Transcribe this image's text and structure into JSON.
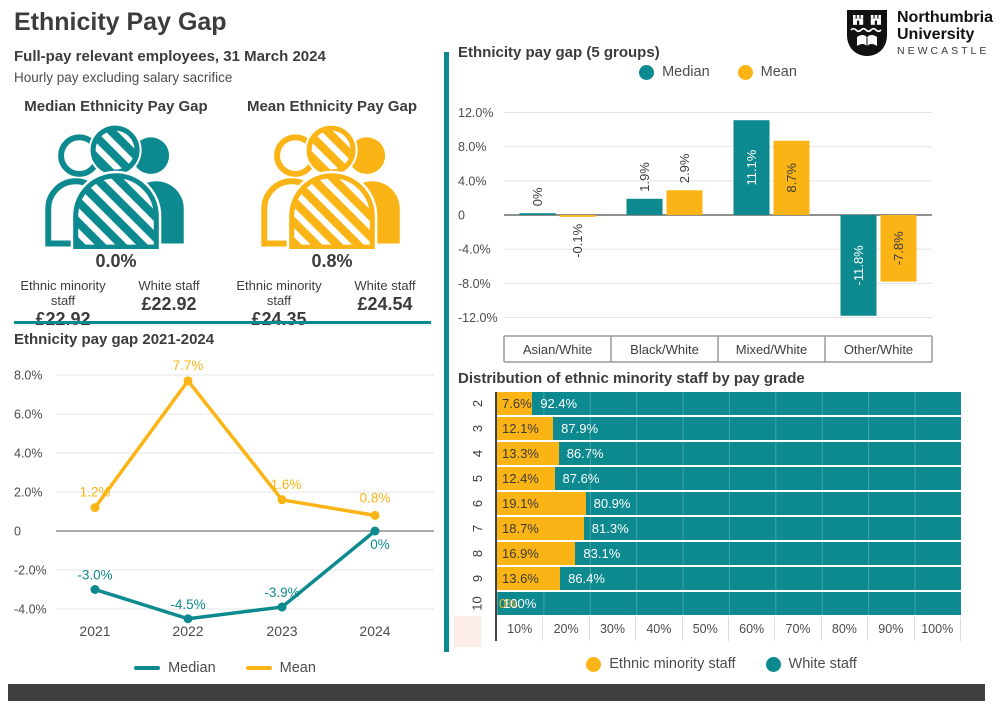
{
  "header": {
    "title": "Ethnicity Pay Gap",
    "subtitle": "Full-pay relevant employees, 31 March 2024",
    "note": "Hourly pay excluding salary sacrifice"
  },
  "logo": {
    "line1": "Northumbria",
    "line2": "University",
    "line3": "NEWCASTLE"
  },
  "colors": {
    "teal": "#0D8A8F",
    "yellow": "#FBB415",
    "dark_text": "#3C3C3B",
    "axis_text": "#4C4C4C",
    "gridline": "#E4E4E4",
    "zero_line": "#8F8F8F",
    "footer": "#3F3F3F"
  },
  "pay_gap": {
    "cards": [
      {
        "title": "Median Ethnicity Pay Gap",
        "value": "0.0%",
        "color": "teal",
        "icon": "people-group-icon",
        "groups": [
          {
            "label": "Ethnic minority staff",
            "value": "£22.92"
          },
          {
            "label": "White staff",
            "value": "£22.92"
          }
        ]
      },
      {
        "title": "Mean Ethnicity Pay Gap",
        "value": "0.8%",
        "color": "yellow",
        "icon": "people-group-icon",
        "groups": [
          {
            "label": "Ethnic minority staff",
            "value": "£24.35"
          },
          {
            "label": "White staff",
            "value": "£24.54"
          }
        ]
      }
    ]
  },
  "chart_data": [
    {
      "id": "trend",
      "type": "line",
      "title": "Ethnicity pay gap 2021-2024",
      "x": [
        "2021",
        "2022",
        "2023",
        "2024"
      ],
      "series": [
        {
          "name": "Median",
          "color": "teal",
          "values": [
            -3.0,
            -4.5,
            -3.9,
            0
          ],
          "labels": [
            "-3.0%",
            "-4.5%",
            "-3.9%",
            "0%"
          ]
        },
        {
          "name": "Mean",
          "color": "yellow",
          "values": [
            1.2,
            7.7,
            1.6,
            0.8
          ],
          "labels": [
            "1.2%",
            "7.7%",
            "1.6%",
            "0.8%"
          ]
        }
      ],
      "yticks": [
        8,
        6,
        4,
        2,
        0,
        -2,
        -4
      ],
      "ytick_labels": [
        "8.0%",
        "6.0%",
        "4.0%",
        "2.0%",
        "0",
        "-2.0%",
        "-4.0%"
      ],
      "ylim": [
        -5.5,
        8.5
      ],
      "legend_position": "bottom",
      "grid": true
    },
    {
      "id": "groups",
      "type": "bar",
      "title": "Ethnicity pay gap (5 groups)",
      "categories": [
        "Asian/White",
        "Black/White",
        "Mixed/White",
        "Other/White"
      ],
      "series": [
        {
          "name": "Median",
          "color": "teal",
          "values": [
            0,
            1.9,
            11.1,
            -11.8
          ],
          "labels": [
            "0%",
            "1.9%",
            "11.1%",
            "-11.8%"
          ]
        },
        {
          "name": "Mean",
          "color": "yellow",
          "values": [
            -0.1,
            2.9,
            8.7,
            -7.8
          ],
          "labels": [
            "-0.1%",
            "2.9%",
            "8.7%",
            "-7.8%"
          ]
        }
      ],
      "yticks": [
        12,
        8,
        4,
        0,
        -4,
        -8,
        -12
      ],
      "ytick_labels": [
        "12.0%",
        "8.0%",
        "4.0%",
        "0",
        "-4.0%",
        "-8.0%",
        "-12.0%"
      ],
      "ylim": [
        -13,
        13
      ],
      "legend_position": "top",
      "grid": true
    },
    {
      "id": "grades",
      "type": "stacked-bar",
      "title": "Distribution of ethnic minority staff by pay grade",
      "categories": [
        "2",
        "3",
        "4",
        "5",
        "6",
        "7",
        "8",
        "9",
        "10"
      ],
      "series": [
        {
          "name": "Ethnic minority staff",
          "color": "yellow",
          "values": [
            7.6,
            12.1,
            13.3,
            12.4,
            19.1,
            18.7,
            16.9,
            13.6,
            0
          ],
          "labels": [
            "7.6%",
            "12.1%",
            "13.3%",
            "12.4%",
            "19.1%",
            "18.7%",
            "16.9%",
            "13.6%",
            "0%"
          ]
        },
        {
          "name": "White staff",
          "color": "teal",
          "values": [
            92.4,
            87.9,
            86.7,
            87.6,
            80.9,
            81.3,
            83.1,
            86.4,
            100
          ],
          "labels": [
            "92.4%",
            "87.9%",
            "86.7%",
            "87.6%",
            "80.9%",
            "81.3%",
            "83.1%",
            "86.4%",
            "100%"
          ]
        }
      ],
      "xticks": [
        "10%",
        "20%",
        "30%",
        "40%",
        "50%",
        "60%",
        "70%",
        "80%",
        "90%",
        "100%"
      ],
      "xlim": [
        0,
        100
      ],
      "legend_position": "bottom"
    }
  ]
}
